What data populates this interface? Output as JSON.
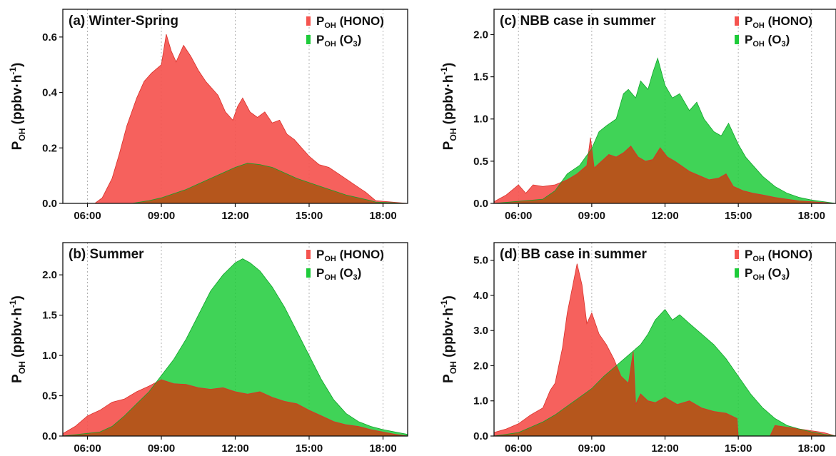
{
  "colors": {
    "hono": "#f5544f",
    "o3": "#1ecb3a",
    "overlap": "#b5561c"
  },
  "chart_data": [
    {
      "id": "a",
      "type": "area",
      "title": "(a) Winter-Spring",
      "ylabel": {
        "main": "P",
        "sub": "OH",
        "rest": " (ppbv·h",
        "sup": "-1",
        "end": ")"
      },
      "xlim": [
        5.0,
        19.0
      ],
      "ylim": [
        0,
        0.7
      ],
      "xticks": [
        6,
        9,
        12,
        15,
        18
      ],
      "xtick_labels": [
        "06:00",
        "09:00",
        "12:00",
        "15:00",
        "18:00"
      ],
      "yticks": [
        0,
        0.2,
        0.4,
        0.6
      ],
      "ytick_labels": [
        "0.0",
        "0.2",
        "0.4",
        "0.6"
      ],
      "grid": "vertical-dotted",
      "legend_position": "top-right",
      "series": [
        {
          "name": {
            "main": "P",
            "sub": "OH",
            "rest": " (HONO)"
          },
          "color": "hono",
          "x": [
            5.0,
            6.3,
            6.6,
            7.0,
            7.3,
            7.6,
            8.0,
            8.3,
            8.6,
            9.0,
            9.2,
            9.4,
            9.6,
            9.9,
            10.2,
            10.5,
            10.8,
            11.0,
            11.3,
            11.6,
            11.9,
            12.1,
            12.3,
            12.6,
            12.9,
            13.2,
            13.5,
            13.8,
            14.1,
            14.4,
            14.7,
            15.0,
            15.4,
            15.8,
            16.3,
            16.8,
            17.3,
            17.7,
            19.0
          ],
          "y": [
            0.0,
            0.0,
            0.02,
            0.09,
            0.18,
            0.28,
            0.38,
            0.44,
            0.47,
            0.5,
            0.61,
            0.55,
            0.51,
            0.57,
            0.53,
            0.48,
            0.44,
            0.42,
            0.39,
            0.33,
            0.3,
            0.35,
            0.38,
            0.33,
            0.31,
            0.33,
            0.29,
            0.3,
            0.25,
            0.23,
            0.2,
            0.17,
            0.14,
            0.13,
            0.1,
            0.07,
            0.04,
            0.01,
            0.0
          ]
        },
        {
          "name": {
            "main": "P",
            "sub": "OH",
            "rest": " (O",
            "sub2": "3",
            "end": ")"
          },
          "color": "o3",
          "x": [
            5.0,
            7.8,
            8.5,
            9.0,
            9.5,
            10.0,
            10.5,
            11.0,
            11.5,
            12.0,
            12.5,
            13.0,
            13.5,
            14.0,
            14.5,
            15.0,
            15.5,
            16.0,
            16.5,
            17.0,
            17.5,
            17.7,
            19.0
          ],
          "y": [
            0.0,
            0.0,
            0.01,
            0.02,
            0.035,
            0.05,
            0.07,
            0.09,
            0.11,
            0.13,
            0.145,
            0.14,
            0.13,
            0.11,
            0.09,
            0.075,
            0.06,
            0.045,
            0.03,
            0.02,
            0.01,
            0.005,
            0.0
          ]
        }
      ]
    },
    {
      "id": "b",
      "type": "area",
      "title": "(b) Summer",
      "ylabel": {
        "main": "P",
        "sub": "OH",
        "rest": " (ppbv·h",
        "sup": "-1",
        "end": ")"
      },
      "xlim": [
        5.0,
        19.0
      ],
      "ylim": [
        0,
        2.4
      ],
      "xticks": [
        6,
        9,
        12,
        15,
        18
      ],
      "xtick_labels": [
        "06:00",
        "09:00",
        "12:00",
        "15:00",
        "18:00"
      ],
      "yticks": [
        0,
        0.5,
        1.0,
        1.5,
        2.0
      ],
      "ytick_labels": [
        "0.0",
        "0.5",
        "1.0",
        "1.5",
        "2.0"
      ],
      "grid": "vertical-dotted",
      "legend_position": "top-right",
      "series": [
        {
          "name": {
            "main": "P",
            "sub": "OH",
            "rest": " (HONO)"
          },
          "color": "hono",
          "x": [
            5.0,
            5.5,
            6.0,
            6.5,
            7.0,
            7.5,
            8.0,
            8.5,
            9.0,
            9.5,
            10.0,
            10.5,
            11.0,
            11.5,
            12.0,
            12.5,
            13.0,
            13.5,
            14.0,
            14.5,
            15.0,
            15.5,
            16.0,
            16.5,
            17.0,
            17.5,
            18.0,
            18.5,
            19.0
          ],
          "y": [
            0.03,
            0.12,
            0.25,
            0.32,
            0.42,
            0.46,
            0.55,
            0.62,
            0.7,
            0.65,
            0.64,
            0.6,
            0.58,
            0.6,
            0.55,
            0.52,
            0.55,
            0.48,
            0.43,
            0.4,
            0.32,
            0.25,
            0.18,
            0.14,
            0.12,
            0.08,
            0.05,
            0.02,
            0.0
          ]
        },
        {
          "name": {
            "main": "P",
            "sub": "OH",
            "rest": " (O",
            "sub2": "3",
            "end": ")"
          },
          "color": "o3",
          "x": [
            5.0,
            6.5,
            7.0,
            7.5,
            8.0,
            8.5,
            9.0,
            9.5,
            10.0,
            10.5,
            11.0,
            11.5,
            12.0,
            12.3,
            12.6,
            13.0,
            13.5,
            14.0,
            14.5,
            15.0,
            15.5,
            16.0,
            16.5,
            17.0,
            17.5,
            18.0,
            18.5,
            19.0
          ],
          "y": [
            0.0,
            0.05,
            0.12,
            0.25,
            0.4,
            0.55,
            0.75,
            0.95,
            1.2,
            1.5,
            1.8,
            2.0,
            2.15,
            2.2,
            2.15,
            2.05,
            1.85,
            1.6,
            1.3,
            1.0,
            0.7,
            0.45,
            0.28,
            0.18,
            0.12,
            0.08,
            0.05,
            0.02
          ]
        }
      ]
    },
    {
      "id": "c",
      "type": "area",
      "title": "(c) NBB case in summer",
      "ylabel": {
        "main": "P",
        "sub": "OH",
        "rest": " (ppbv·h",
        "sup": "-1",
        "end": ")"
      },
      "xlim": [
        5.0,
        19.0
      ],
      "ylim": [
        0,
        2.3
      ],
      "xticks": [
        6,
        9,
        12,
        15,
        18
      ],
      "xtick_labels": [
        "06:00",
        "09:00",
        "12:00",
        "15:00",
        "18:00"
      ],
      "yticks": [
        0,
        0.5,
        1.0,
        1.5,
        2.0
      ],
      "ytick_labels": [
        "0.0",
        "0.5",
        "1.0",
        "1.5",
        "2.0"
      ],
      "grid": "vertical-dotted",
      "legend_position": "top-right",
      "series": [
        {
          "name": {
            "main": "P",
            "sub": "OH",
            "rest": " (HONO)"
          },
          "color": "hono",
          "x": [
            5.0,
            5.5,
            6.0,
            6.3,
            6.6,
            7.0,
            7.5,
            8.0,
            8.4,
            8.8,
            8.95,
            9.1,
            9.4,
            9.7,
            10.0,
            10.3,
            10.6,
            10.9,
            11.2,
            11.5,
            11.8,
            12.1,
            12.4,
            12.7,
            13.0,
            13.4,
            13.8,
            14.2,
            14.5,
            14.8,
            15.2,
            15.6,
            16.0,
            16.5,
            17.0,
            17.5,
            18.0,
            18.5,
            19.0
          ],
          "y": [
            0.02,
            0.1,
            0.22,
            0.12,
            0.22,
            0.2,
            0.22,
            0.28,
            0.35,
            0.45,
            0.78,
            0.42,
            0.5,
            0.58,
            0.55,
            0.6,
            0.68,
            0.55,
            0.5,
            0.52,
            0.66,
            0.55,
            0.5,
            0.44,
            0.38,
            0.33,
            0.28,
            0.3,
            0.35,
            0.2,
            0.15,
            0.12,
            0.1,
            0.07,
            0.05,
            0.03,
            0.02,
            0.01,
            0.0
          ]
        },
        {
          "name": {
            "main": "P",
            "sub": "OH",
            "rest": " (O",
            "sub2": "3",
            "end": ")"
          },
          "color": "o3",
          "x": [
            5.0,
            7.0,
            7.5,
            8.0,
            8.5,
            9.0,
            9.3,
            9.6,
            10.0,
            10.3,
            10.5,
            10.8,
            11.0,
            11.3,
            11.5,
            11.7,
            12.0,
            12.3,
            12.6,
            13.0,
            13.3,
            13.6,
            14.0,
            14.3,
            14.6,
            15.0,
            15.3,
            15.6,
            16.0,
            16.5,
            17.0,
            17.5,
            18.0,
            18.5,
            19.0
          ],
          "y": [
            0.0,
            0.05,
            0.15,
            0.35,
            0.45,
            0.65,
            0.85,
            0.92,
            1.0,
            1.3,
            1.35,
            1.25,
            1.45,
            1.35,
            1.55,
            1.72,
            1.4,
            1.25,
            1.3,
            1.1,
            1.2,
            1.0,
            0.85,
            0.8,
            0.95,
            0.7,
            0.55,
            0.45,
            0.32,
            0.2,
            0.12,
            0.07,
            0.04,
            0.02,
            0.0
          ]
        }
      ]
    },
    {
      "id": "d",
      "type": "area",
      "title": "(d) BB case in summer",
      "ylabel": {
        "main": "P",
        "sub": "OH",
        "rest": " (ppbv·h",
        "sup": "-1",
        "end": ")"
      },
      "xlim": [
        5.0,
        19.0
      ],
      "ylim": [
        0,
        5.5
      ],
      "xticks": [
        6,
        9,
        12,
        15,
        18
      ],
      "xtick_labels": [
        "06:00",
        "09:00",
        "12:00",
        "15:00",
        "18:00"
      ],
      "yticks": [
        0,
        1.0,
        2.0,
        3.0,
        4.0,
        5.0
      ],
      "ytick_labels": [
        "0.0",
        "1.0",
        "2.0",
        "3.0",
        "4.0",
        "5.0"
      ],
      "grid": "vertical-dotted",
      "legend_position": "top-right",
      "series": [
        {
          "name": {
            "main": "P",
            "sub": "OH",
            "rest": " (HONO)"
          },
          "color": "hono",
          "x": [
            5.0,
            5.5,
            6.0,
            6.5,
            7.0,
            7.3,
            7.5,
            7.8,
            8.0,
            8.2,
            8.4,
            8.6,
            8.8,
            9.0,
            9.3,
            9.6,
            9.9,
            10.2,
            10.5,
            10.7,
            10.8,
            11.0,
            11.3,
            11.6,
            12.0,
            12.5,
            13.0,
            13.5,
            14.0,
            14.5,
            14.95,
            15.0,
            16.3,
            16.5,
            17.0,
            17.5,
            18.0,
            18.5,
            19.0
          ],
          "y": [
            0.1,
            0.2,
            0.35,
            0.6,
            0.8,
            1.3,
            1.5,
            2.5,
            3.5,
            4.2,
            4.9,
            4.3,
            3.2,
            3.5,
            2.9,
            2.6,
            2.2,
            1.7,
            1.5,
            2.4,
            0.9,
            1.2,
            1.0,
            0.95,
            1.1,
            0.9,
            1.0,
            0.8,
            0.7,
            0.65,
            0.5,
            0.0,
            0.0,
            0.3,
            0.25,
            0.2,
            0.15,
            0.1,
            0.0
          ]
        },
        {
          "name": {
            "main": "P",
            "sub": "OH",
            "rest": " (O",
            "sub2": "3",
            "end": ")"
          },
          "color": "o3",
          "x": [
            5.0,
            6.0,
            6.5,
            7.0,
            7.5,
            8.0,
            8.5,
            9.0,
            9.5,
            10.0,
            10.5,
            11.0,
            11.3,
            11.6,
            12.0,
            12.3,
            12.6,
            13.0,
            13.5,
            14.0,
            14.5,
            15.0,
            15.5,
            16.0,
            16.5,
            17.0,
            17.5,
            18.0,
            18.5,
            19.0
          ],
          "y": [
            0.0,
            0.1,
            0.25,
            0.4,
            0.6,
            0.85,
            1.1,
            1.35,
            1.7,
            2.0,
            2.3,
            2.6,
            2.9,
            3.3,
            3.6,
            3.3,
            3.45,
            3.2,
            2.9,
            2.6,
            2.2,
            1.7,
            1.2,
            0.8,
            0.5,
            0.3,
            0.2,
            0.12,
            0.05,
            0.0
          ]
        }
      ]
    }
  ]
}
